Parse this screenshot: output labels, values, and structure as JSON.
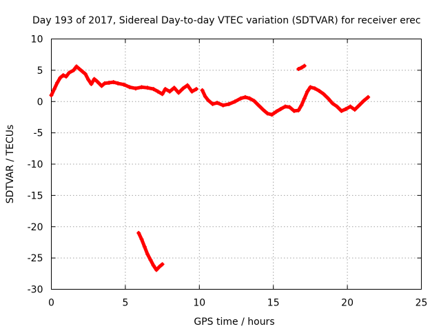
{
  "chart_data": {
    "type": "scatter",
    "title": "Day 193 of 2017, Sidereal Day-to-day VTEC variation (SDTVAR) for receiver erec",
    "xlabel": "GPS time / hours",
    "ylabel": "SDTVAR / TECUs",
    "xlim": [
      0,
      25
    ],
    "ylim": [
      -30,
      10
    ],
    "xticks": [
      "0",
      "5",
      "10",
      "15",
      "20",
      "25"
    ],
    "yticks": [
      "10",
      "5",
      "0",
      "-5",
      "-10",
      "-15",
      "-20",
      "-25",
      "-30"
    ],
    "grid": true,
    "series_color": "#ff0000",
    "series": [
      {
        "name": "main trace",
        "points": [
          [
            0.0,
            1.0
          ],
          [
            0.2,
            2.0
          ],
          [
            0.4,
            3.0
          ],
          [
            0.6,
            3.8
          ],
          [
            0.8,
            4.2
          ],
          [
            1.0,
            4.0
          ],
          [
            1.2,
            4.6
          ],
          [
            1.5,
            5.0
          ],
          [
            1.7,
            5.6
          ],
          [
            1.9,
            5.2
          ],
          [
            2.1,
            4.8
          ],
          [
            2.3,
            4.4
          ],
          [
            2.5,
            3.5
          ],
          [
            2.7,
            2.8
          ],
          [
            2.9,
            3.6
          ],
          [
            3.1,
            3.2
          ],
          [
            3.4,
            2.5
          ],
          [
            3.6,
            2.9
          ],
          [
            3.9,
            3.0
          ],
          [
            4.2,
            3.1
          ],
          [
            4.5,
            2.9
          ],
          [
            4.9,
            2.7
          ],
          [
            5.3,
            2.3
          ],
          [
            5.7,
            2.1
          ],
          [
            6.1,
            2.3
          ],
          [
            6.5,
            2.2
          ],
          [
            6.9,
            2.0
          ],
          [
            7.2,
            1.6
          ],
          [
            7.5,
            1.2
          ],
          [
            7.7,
            2.0
          ],
          [
            8.0,
            1.6
          ],
          [
            8.3,
            2.2
          ],
          [
            8.6,
            1.4
          ],
          [
            8.9,
            2.1
          ],
          [
            9.2,
            2.6
          ],
          [
            9.5,
            1.6
          ],
          [
            9.8,
            2.0
          ]
        ]
      },
      {
        "name": "main trace after 10h",
        "points": [
          [
            10.2,
            1.8
          ],
          [
            10.4,
            0.8
          ],
          [
            10.6,
            0.2
          ],
          [
            10.9,
            -0.4
          ],
          [
            11.2,
            -0.2
          ],
          [
            11.6,
            -0.6
          ],
          [
            12.0,
            -0.4
          ],
          [
            12.4,
            0.0
          ],
          [
            12.8,
            0.5
          ],
          [
            13.1,
            0.7
          ],
          [
            13.4,
            0.5
          ],
          [
            13.7,
            0.1
          ],
          [
            14.0,
            -0.6
          ],
          [
            14.3,
            -1.3
          ],
          [
            14.6,
            -1.9
          ],
          [
            14.9,
            -2.1
          ],
          [
            15.2,
            -1.6
          ],
          [
            15.5,
            -1.2
          ],
          [
            15.8,
            -0.8
          ],
          [
            16.1,
            -0.9
          ],
          [
            16.4,
            -1.5
          ],
          [
            16.7,
            -1.4
          ],
          [
            16.9,
            -0.6
          ],
          [
            17.1,
            0.5
          ],
          [
            17.3,
            1.6
          ],
          [
            17.5,
            2.3
          ],
          [
            17.8,
            2.1
          ],
          [
            18.1,
            1.7
          ],
          [
            18.4,
            1.2
          ],
          [
            18.7,
            0.5
          ],
          [
            19.0,
            -0.3
          ],
          [
            19.3,
            -0.8
          ],
          [
            19.6,
            -1.5
          ],
          [
            19.9,
            -1.2
          ],
          [
            20.2,
            -0.8
          ],
          [
            20.5,
            -1.3
          ],
          [
            20.8,
            -0.6
          ],
          [
            21.1,
            0.1
          ],
          [
            21.4,
            0.7
          ]
        ]
      },
      {
        "name": "short segment near 17h",
        "points": [
          [
            16.7,
            5.2
          ],
          [
            16.9,
            5.4
          ],
          [
            17.1,
            5.7
          ]
        ]
      },
      {
        "name": "outlier segment",
        "points": [
          [
            5.9,
            -21.0
          ],
          [
            6.1,
            -22.0
          ],
          [
            6.3,
            -23.2
          ],
          [
            6.5,
            -24.4
          ],
          [
            6.7,
            -25.3
          ],
          [
            6.9,
            -26.2
          ],
          [
            7.1,
            -26.9
          ],
          [
            7.3,
            -26.4
          ],
          [
            7.5,
            -26.0
          ]
        ]
      }
    ]
  }
}
